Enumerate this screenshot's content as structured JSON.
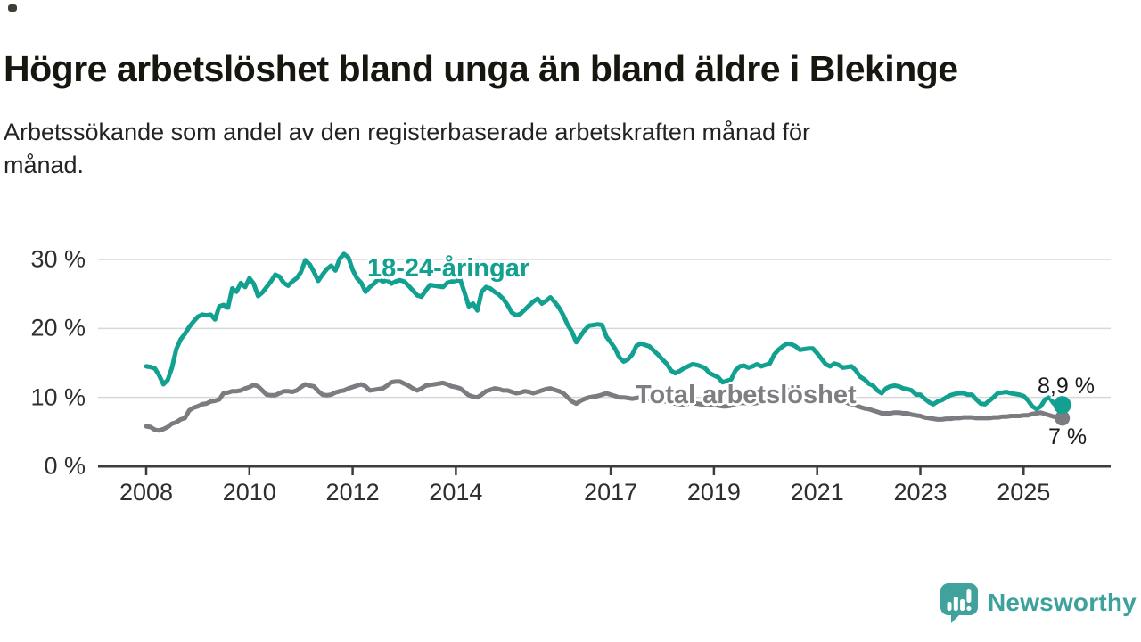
{
  "header": {
    "title": "Högre arbetslöshet bland unga än bland äldre i Blekinge",
    "subtitle_line1": "Arbetssökande som andel av den registerbaserade arbetskraften månad för",
    "subtitle_line2": "månad."
  },
  "chart_data": {
    "type": "line",
    "title": "Högre arbetslöshet bland unga än bland äldre i Blekinge",
    "subtitle": "Arbetssökande som andel av den registerbaserade arbetskraften månad för månad.",
    "unit": "%",
    "frequency": "monthly",
    "start_year": 2008,
    "points_per_year": 12,
    "end_period": "2025-10",
    "ylim": [
      0,
      32
    ],
    "grid": "horizontal",
    "grid_color": "#d8d8d8",
    "axis_color": "#3c3c3c",
    "y_ticks": [
      {
        "value": 0,
        "label": "0 %"
      },
      {
        "value": 10,
        "label": "10 %"
      },
      {
        "value": 20,
        "label": "20 %"
      },
      {
        "value": 30,
        "label": "30 %"
      }
    ],
    "x_ticks": [
      {
        "year": 2008,
        "label": "2008"
      },
      {
        "year": 2010,
        "label": "2010"
      },
      {
        "year": 2012,
        "label": "2012"
      },
      {
        "year": 2014,
        "label": "2014"
      },
      {
        "year": 2017,
        "label": "2017"
      },
      {
        "year": 2019,
        "label": "2019"
      },
      {
        "year": 2021,
        "label": "2021"
      },
      {
        "year": 2023,
        "label": "2023"
      },
      {
        "year": 2025,
        "label": "2025"
      }
    ],
    "series": [
      {
        "name": "18-24-åringar",
        "color": "#12a090",
        "end_label": "8,9 %",
        "end_value": 8.9,
        "values": [
          14.5,
          14.4,
          14.2,
          13.2,
          11.9,
          12.5,
          14.3,
          17.0,
          18.4,
          19.2,
          20.2,
          21.0,
          21.7,
          22.0,
          21.9,
          22.0,
          21.3,
          23.2,
          23.4,
          23.0,
          25.8,
          25.3,
          26.6,
          26.0,
          27.3,
          26.5,
          24.7,
          25.2,
          26.0,
          26.8,
          27.8,
          27.5,
          26.6,
          26.2,
          26.8,
          27.3,
          28.2,
          29.9,
          29.3,
          28.2,
          26.9,
          27.8,
          28.6,
          29.1,
          28.4,
          30.1,
          30.8,
          30.3,
          28.5,
          27.3,
          26.6,
          25.3,
          26.0,
          26.5,
          27.2,
          26.8,
          27.0,
          26.5,
          26.8,
          27.0,
          26.8,
          26.2,
          25.5,
          24.8,
          24.6,
          25.5,
          26.3,
          26.2,
          26.1,
          26.0,
          26.6,
          26.8,
          26.9,
          27.1,
          25.2,
          23.2,
          23.6,
          22.6,
          25.3,
          26.0,
          25.8,
          25.3,
          24.9,
          24.3,
          23.4,
          22.3,
          21.9,
          22.1,
          22.7,
          23.3,
          23.9,
          24.3,
          23.6,
          24.0,
          24.5,
          23.8,
          23.0,
          21.9,
          20.5,
          19.5,
          18.0,
          18.9,
          19.8,
          20.4,
          20.5,
          20.6,
          20.5,
          18.8,
          18.0,
          17.1,
          15.8,
          15.2,
          15.5,
          16.2,
          17.5,
          17.8,
          17.6,
          17.4,
          16.8,
          16.2,
          15.5,
          14.9,
          13.9,
          13.5,
          13.8,
          14.2,
          14.5,
          14.8,
          14.7,
          14.5,
          14.2,
          13.5,
          13.2,
          12.9,
          12.2,
          12.4,
          12.6,
          13.9,
          14.5,
          14.6,
          14.3,
          14.5,
          14.8,
          14.5,
          14.7,
          14.9,
          16.2,
          16.9,
          17.4,
          17.8,
          17.7,
          17.4,
          16.9,
          17.0,
          17.1,
          17.1,
          16.4,
          15.6,
          14.8,
          14.5,
          14.9,
          14.7,
          14.3,
          14.4,
          14.5,
          13.9,
          13.0,
          12.6,
          12.0,
          11.7,
          11.0,
          10.6,
          11.3,
          11.6,
          11.7,
          11.6,
          11.3,
          11.2,
          11.0,
          10.4,
          10.4,
          9.8,
          9.3,
          9.0,
          9.4,
          9.6,
          10.0,
          10.3,
          10.5,
          10.6,
          10.6,
          10.4,
          10.4,
          9.7,
          9.1,
          9.0,
          9.5,
          10.0,
          10.6,
          10.7,
          10.8,
          10.6,
          10.5,
          10.4,
          10.2,
          9.6,
          8.7,
          8.3,
          8.7,
          9.7,
          10.0,
          9.1,
          8.8,
          8.9
        ]
      },
      {
        "name": "Total arbetslöshet",
        "color": "#7b7b80",
        "end_label": "7 %",
        "end_value": 7.0,
        "values": [
          5.8,
          5.7,
          5.3,
          5.2,
          5.4,
          5.7,
          6.2,
          6.4,
          6.8,
          7.0,
          8.1,
          8.5,
          8.7,
          9.0,
          9.1,
          9.4,
          9.5,
          9.7,
          10.6,
          10.7,
          10.9,
          10.9,
          11.0,
          11.3,
          11.5,
          11.8,
          11.6,
          11.0,
          10.4,
          10.3,
          10.3,
          10.6,
          10.9,
          10.9,
          10.8,
          11.0,
          11.5,
          11.9,
          11.7,
          11.6,
          10.9,
          10.4,
          10.3,
          10.4,
          10.7,
          10.9,
          11.0,
          11.3,
          11.5,
          11.7,
          11.9,
          11.6,
          11.0,
          11.1,
          11.2,
          11.3,
          11.7,
          12.2,
          12.3,
          12.3,
          12.0,
          11.7,
          11.3,
          11.0,
          11.3,
          11.7,
          11.8,
          11.9,
          12.0,
          12.1,
          11.9,
          11.6,
          11.5,
          11.3,
          10.8,
          10.3,
          10.1,
          10.0,
          10.4,
          10.9,
          11.1,
          11.3,
          11.2,
          11.0,
          11.0,
          10.8,
          10.6,
          10.7,
          10.9,
          10.8,
          10.6,
          10.8,
          11.0,
          11.2,
          11.3,
          11.1,
          10.9,
          10.6,
          10.0,
          9.4,
          9.1,
          9.5,
          9.8,
          10.0,
          10.1,
          10.2,
          10.4,
          10.6,
          10.4,
          10.2,
          10.0,
          10.0,
          9.9,
          9.8,
          9.9,
          10.0,
          9.9,
          9.8,
          9.7,
          9.6,
          9.5,
          9.4,
          9.2,
          9.1,
          9.0,
          9.0,
          9.1,
          9.2,
          9.1,
          9.0,
          8.9,
          8.9,
          8.9,
          8.8,
          8.7,
          8.7,
          8.8,
          9.0,
          9.2,
          9.2,
          9.1,
          9.1,
          9.2,
          9.3,
          9.4,
          9.5,
          10.0,
          10.6,
          10.9,
          11.1,
          11.2,
          11.1,
          10.9,
          10.7,
          10.6,
          10.5,
          10.4,
          10.3,
          10.1,
          9.9,
          9.7,
          9.5,
          9.4,
          9.2,
          9.0,
          8.8,
          8.6,
          8.4,
          8.3,
          8.1,
          7.9,
          7.7,
          7.7,
          7.7,
          7.8,
          7.8,
          7.7,
          7.7,
          7.5,
          7.4,
          7.3,
          7.1,
          7.0,
          6.9,
          6.8,
          6.8,
          6.9,
          6.9,
          7.0,
          7.0,
          7.1,
          7.1,
          7.1,
          7.0,
          7.0,
          7.0,
          7.0,
          7.1,
          7.1,
          7.2,
          7.2,
          7.3,
          7.3,
          7.3,
          7.4,
          7.4,
          7.6,
          7.7,
          7.8,
          7.6,
          7.4,
          7.2,
          7.1,
          7.0
        ]
      }
    ]
  },
  "footer": {
    "brand": "Newsworthy",
    "brand_color": "#3da19c"
  }
}
